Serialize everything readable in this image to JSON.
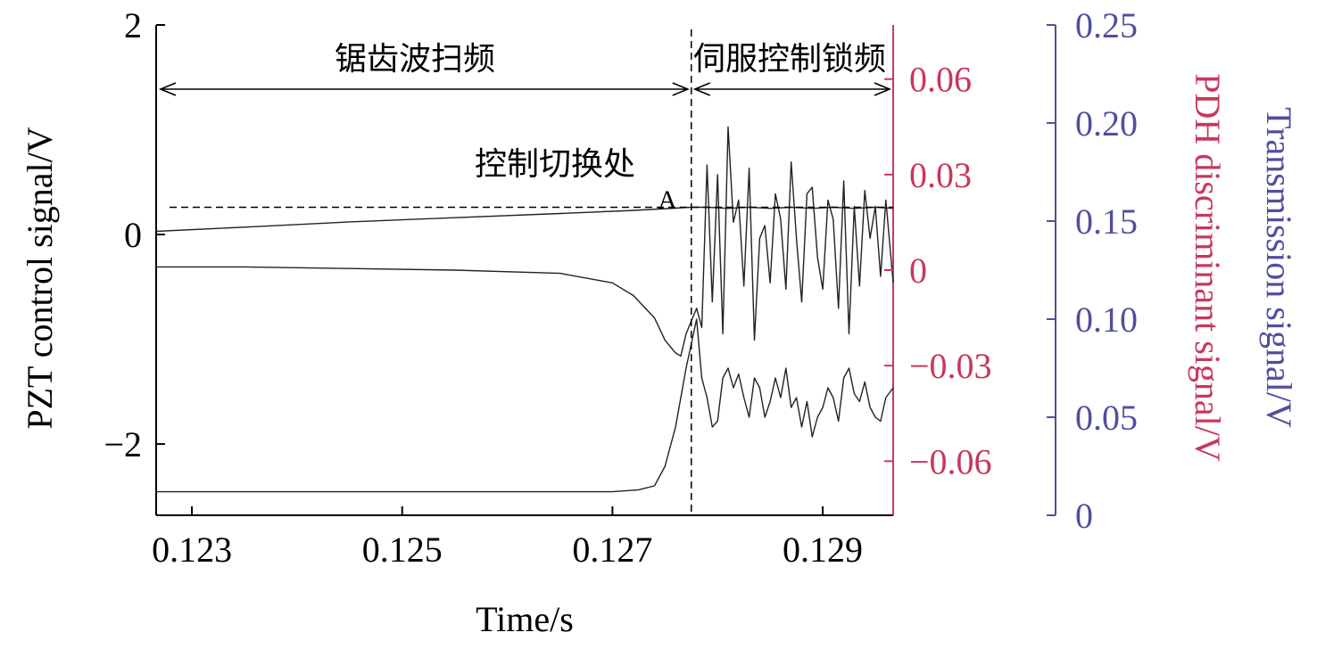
{
  "chart_data": {
    "type": "line",
    "xlabel": "Time/s",
    "x_ticks": [
      "0.123",
      "0.125",
      "0.127",
      "0.129"
    ],
    "x_tick_values": [
      0.123,
      0.125,
      0.127,
      0.129
    ],
    "xlim": [
      0.12266,
      0.12967
    ],
    "grid": false,
    "axes": {
      "left": {
        "label": "PZT control signal/V",
        "color": "#000000",
        "ylim": [
          -2.68,
          2.0
        ],
        "ticks": [
          "2",
          "0",
          "−2"
        ],
        "tick_values": [
          2,
          0,
          -2
        ]
      },
      "right_inner": {
        "label": "PDH discriminant signal/V",
        "color": "#c8385a",
        "ylim": [
          -0.077,
          0.077
        ],
        "ticks": [
          "0.06",
          "0.03",
          "0",
          "−0.03",
          "−0.06"
        ],
        "tick_values": [
          0.06,
          0.03,
          0,
          -0.03,
          -0.06
        ]
      },
      "right_outer": {
        "label": "Transmission signal/V",
        "color": "#4f4f9f",
        "ylim": [
          0.0,
          0.25
        ],
        "ticks": [
          "0.25",
          "0.20",
          "0.15",
          "0.10",
          "0.05",
          "0"
        ],
        "tick_values": [
          0.25,
          0.2,
          0.15,
          0.1,
          0.05,
          0
        ]
      }
    },
    "series": [
      {
        "axis": "left",
        "x": [
          0.12266,
          0.1235,
          0.1245,
          0.1255,
          0.1265,
          0.1272,
          0.12775,
          0.1279,
          0.1281,
          0.1283,
          0.1285,
          0.1287,
          0.1289,
          0.1291,
          0.1293,
          0.1295,
          0.12967
        ],
        "y": [
          0.03,
          0.07,
          0.12,
          0.16,
          0.2,
          0.23,
          0.26,
          0.26,
          0.25,
          0.26,
          0.25,
          0.26,
          0.25,
          0.26,
          0.25,
          0.26,
          0.25
        ]
      },
      {
        "axis": "right_inner",
        "x": [
          0.12266,
          0.1235,
          0.1245,
          0.1255,
          0.1265,
          0.127,
          0.1272,
          0.1274,
          0.1275,
          0.1276,
          0.12765,
          0.1277,
          0.1278,
          0.12785,
          0.1279,
          0.12795,
          0.128,
          0.12805,
          0.1281,
          0.12815,
          0.1282,
          0.12825,
          0.1283,
          0.12835,
          0.1284,
          0.12845,
          0.1285,
          0.12855,
          0.1286,
          0.12865,
          0.1287,
          0.12875,
          0.1288,
          0.12885,
          0.1289,
          0.12895,
          0.129,
          0.12905,
          0.1291,
          0.12915,
          0.1292,
          0.12925,
          0.1293,
          0.12935,
          0.1294,
          0.12945,
          0.1295,
          0.12955,
          0.1296,
          0.12967
        ],
        "y": [
          0.001,
          0.001,
          0.0005,
          0.0,
          -0.001,
          -0.004,
          -0.008,
          -0.015,
          -0.022,
          -0.026,
          -0.027,
          -0.02,
          -0.012,
          -0.018,
          0.033,
          -0.01,
          0.03,
          -0.02,
          0.045,
          0.015,
          0.022,
          -0.005,
          0.032,
          -0.022,
          0.01,
          0.014,
          -0.004,
          0.024,
          0.016,
          -0.006,
          0.034,
          0.01,
          -0.01,
          0.024,
          0.026,
          0.004,
          -0.006,
          0.022,
          0.016,
          -0.012,
          0.028,
          -0.02,
          0.02,
          -0.005,
          0.025,
          0.01,
          0.02,
          -0.002,
          0.022,
          -0.004
        ]
      },
      {
        "axis": "right_outer",
        "x": [
          0.12266,
          0.1235,
          0.1245,
          0.1255,
          0.1265,
          0.127,
          0.12725,
          0.1274,
          0.1275,
          0.1276,
          0.1277,
          0.1278,
          0.12785,
          0.1279,
          0.12795,
          0.128,
          0.12805,
          0.1281,
          0.12815,
          0.1282,
          0.12825,
          0.1283,
          0.12835,
          0.1284,
          0.12845,
          0.1285,
          0.12855,
          0.1286,
          0.12865,
          0.1287,
          0.12875,
          0.1288,
          0.12885,
          0.1289,
          0.12895,
          0.129,
          0.12905,
          0.1291,
          0.12915,
          0.1292,
          0.12925,
          0.1293,
          0.12935,
          0.1294,
          0.12945,
          0.1295,
          0.12955,
          0.1296,
          0.12967
        ],
        "y": [
          0.012,
          0.012,
          0.012,
          0.012,
          0.012,
          0.012,
          0.013,
          0.015,
          0.025,
          0.045,
          0.075,
          0.1,
          0.07,
          0.06,
          0.045,
          0.048,
          0.07,
          0.075,
          0.065,
          0.072,
          0.06,
          0.05,
          0.07,
          0.065,
          0.05,
          0.058,
          0.07,
          0.06,
          0.075,
          0.055,
          0.06,
          0.045,
          0.058,
          0.04,
          0.05,
          0.055,
          0.065,
          0.06,
          0.048,
          0.07,
          0.075,
          0.062,
          0.058,
          0.068,
          0.055,
          0.05,
          0.048,
          0.06,
          0.065
        ]
      }
    ],
    "annotations": {
      "region_left": "锯齿波扫频",
      "region_right": "伺服控制锁频",
      "switch_label": "控制切换处",
      "point_label": "A",
      "switch_x": 0.12775,
      "level_y_left": 0.26
    }
  }
}
